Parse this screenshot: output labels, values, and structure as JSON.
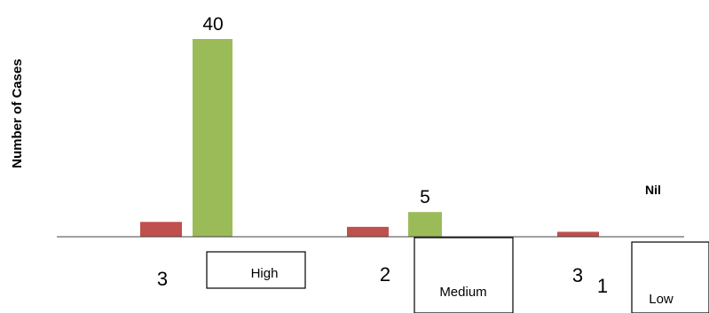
{
  "chart_data": {
    "type": "bar",
    "ylabel": "Number of Cases",
    "categories": [
      "High",
      "Medium",
      "Low"
    ],
    "series": [
      {
        "color": "#c0504d",
        "values": [
          3,
          2,
          1
        ]
      },
      {
        "color": "#9bbb59",
        "values": [
          40,
          5,
          0
        ]
      }
    ],
    "data_labels": [
      "40",
      "5",
      "Nil"
    ],
    "counts": [
      [
        "3"
      ],
      [
        "2"
      ],
      [
        "3",
        "1"
      ]
    ],
    "ylim": [
      0,
      40
    ],
    "grid": false
  }
}
